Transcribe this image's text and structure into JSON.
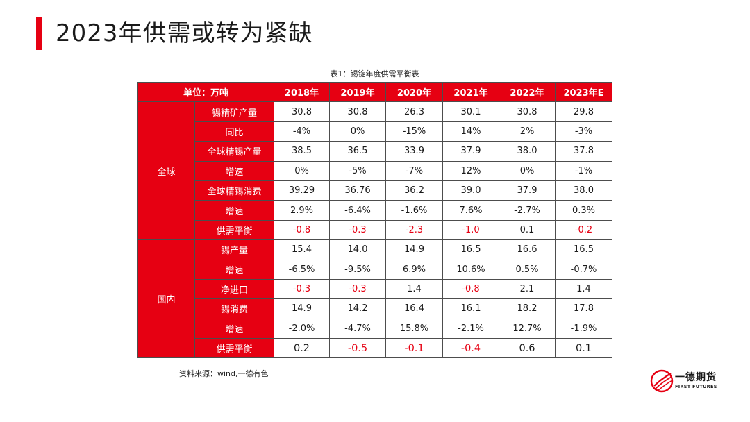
{
  "slide": {
    "title": "2023年供需或转为紧缺",
    "table_caption": "表1：锡锭年度供需平衡表",
    "source": "资料来源：wind,一德有色",
    "logo_cn": "一德期货",
    "logo_en": "FIRST FUTURES"
  },
  "colors": {
    "accent": "#e60012",
    "negative_text": "#e60012",
    "border": "#4d4d4d"
  },
  "chart_data": {
    "type": "table",
    "title": "表1：锡锭年度供需平衡表",
    "unit_header": "单位：万吨",
    "columns": [
      "2018年",
      "2019年",
      "2020年",
      "2021年",
      "2022年",
      "2023年E"
    ],
    "groups": [
      {
        "name": "全球",
        "rows": [
          {
            "label": "锡精矿产量",
            "values": [
              "30.8",
              "30.8",
              "26.3",
              "30.1",
              "30.8",
              "29.8"
            ]
          },
          {
            "label": "同比",
            "values": [
              "-4%",
              "0%",
              "-15%",
              "14%",
              "2%",
              "-3%"
            ]
          },
          {
            "label": "全球精锡产量",
            "values": [
              "38.5",
              "36.5",
              "33.9",
              "37.9",
              "38.0",
              "37.8"
            ]
          },
          {
            "label": "增速",
            "values": [
              "0%",
              "-5%",
              "-7%",
              "12%",
              "0%",
              "-1%"
            ]
          },
          {
            "label": "全球精锡消费",
            "values": [
              "39.29",
              "36.76",
              "36.2",
              "39.0",
              "37.9",
              "38.0"
            ]
          },
          {
            "label": "增速",
            "values": [
              "2.9%",
              "-6.4%",
              "-1.6%",
              "7.6%",
              "-2.7%",
              "0.3%"
            ]
          },
          {
            "label": "供需平衡",
            "values": [
              "-0.8",
              "-0.3",
              "-2.3",
              "-1.0",
              "0.1",
              "-0.2"
            ],
            "highlight_negative": true
          }
        ]
      },
      {
        "name": "国内",
        "rows": [
          {
            "label": "锡产量",
            "values": [
              "15.4",
              "14.0",
              "14.9",
              "16.5",
              "16.6",
              "16.5"
            ]
          },
          {
            "label": "增速",
            "values": [
              "-6.5%",
              "-9.5%",
              "6.9%",
              "10.6%",
              "0.5%",
              "-0.7%"
            ]
          },
          {
            "label": "净进口",
            "values": [
              "-0.3",
              "-0.3",
              "1.4",
              "-0.8",
              "2.1",
              "1.4"
            ],
            "highlight_negative": true
          },
          {
            "label": "锡消费",
            "values": [
              "14.9",
              "14.2",
              "16.4",
              "16.1",
              "18.2",
              "17.8"
            ]
          },
          {
            "label": "增速",
            "values": [
              "-2.0%",
              "-4.7%",
              "15.8%",
              "-2.1%",
              "12.7%",
              "-1.9%"
            ]
          },
          {
            "label": "供需平衡",
            "values": [
              "0.2",
              "-0.5",
              "-0.1",
              "-0.4",
              "0.6",
              "0.1"
            ],
            "highlight_negative": true,
            "larger_font": true
          }
        ]
      }
    ]
  }
}
